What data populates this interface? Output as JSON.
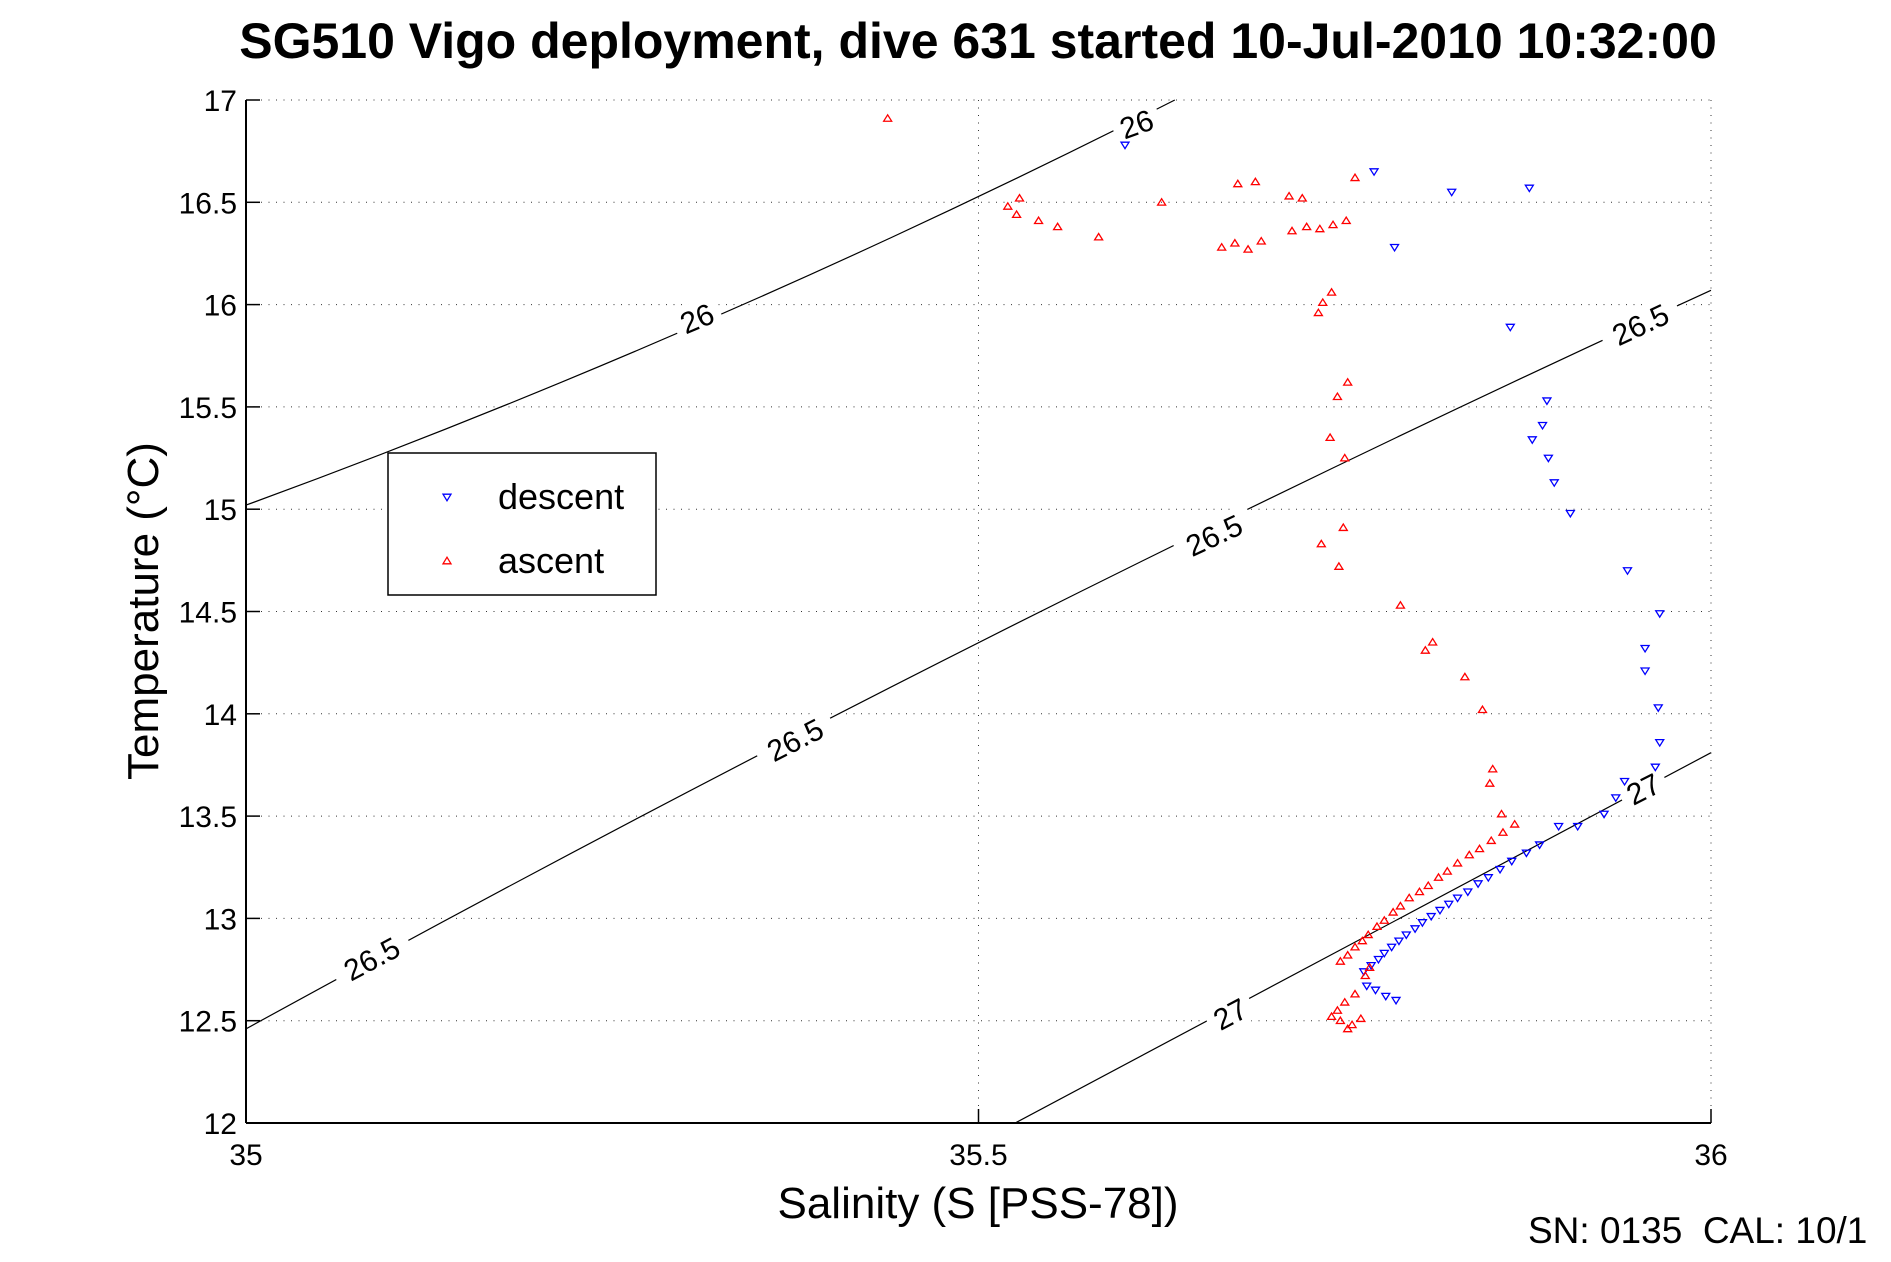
{
  "title": "SG510 Vigo deployment, dive 631 started 10-Jul-2010 10:32:00",
  "footer_note": "SN: 0135  CAL: 10/1",
  "chart_data": {
    "type": "scatter",
    "title": "SG510 Vigo deployment, dive 631 started 10-Jul-2010 10:32:00",
    "xlabel": "Salinity (S [PSS-78])",
    "ylabel": "Temperature (°C)",
    "xlim": [
      35,
      36
    ],
    "ylim": [
      12,
      17
    ],
    "xticks": [
      [
        35,
        "35"
      ],
      [
        35.5,
        "35.5"
      ],
      [
        36,
        "36"
      ]
    ],
    "yticks": [
      [
        12,
        "12"
      ],
      [
        12.5,
        "12.5"
      ],
      [
        13,
        "13"
      ],
      [
        13.5,
        "13.5"
      ],
      [
        14,
        "14"
      ],
      [
        14.5,
        "14.5"
      ],
      [
        15,
        "15"
      ],
      [
        15.5,
        "15.5"
      ],
      [
        16,
        "16"
      ],
      [
        16.5,
        "16.5"
      ],
      [
        17,
        "17"
      ]
    ],
    "grid": "dotted",
    "legend": {
      "position": "upper-left-inside",
      "entries": [
        {
          "label": "descent",
          "marker": "triangle-down",
          "color": "#0000ff"
        },
        {
          "label": "ascent",
          "marker": "triangle-up",
          "color": "#ff0000"
        }
      ]
    },
    "contours": [
      {
        "value": "26",
        "quad": [
          [
            35.0,
            15.02
          ],
          [
            35.317,
            15.85
          ],
          [
            35.634,
            17.0
          ]
        ],
        "labels": [
          [
            35.308,
            15.93,
            -23
          ],
          [
            35.608,
            16.88,
            -20
          ]
        ]
      },
      {
        "value": "26.5",
        "quad": [
          [
            35.0,
            12.46
          ],
          [
            35.5,
            14.43
          ],
          [
            36.0,
            16.07
          ]
        ],
        "labels": [
          [
            35.086,
            12.8,
            -28
          ],
          [
            35.375,
            13.87,
            -27
          ],
          [
            35.661,
            14.87,
            -25
          ],
          [
            35.952,
            15.9,
            -25
          ]
        ]
      },
      {
        "value": "27",
        "quad": [
          [
            35.525,
            12.0
          ],
          [
            35.762,
            12.91
          ],
          [
            36.0,
            13.81
          ]
        ],
        "labels": [
          [
            35.672,
            12.53,
            -28
          ],
          [
            35.954,
            13.63,
            -27
          ]
        ]
      }
    ],
    "series": [
      {
        "name": "descent",
        "marker": "triangle-down",
        "color": "#0000ff",
        "points": [
          [
            35.6,
            16.78
          ],
          [
            35.77,
            16.65
          ],
          [
            35.823,
            16.55
          ],
          [
            35.876,
            16.57
          ],
          [
            35.784,
            16.28
          ],
          [
            35.863,
            15.89
          ],
          [
            35.888,
            15.53
          ],
          [
            35.885,
            15.41
          ],
          [
            35.878,
            15.34
          ],
          [
            35.889,
            15.25
          ],
          [
            35.893,
            15.13
          ],
          [
            35.904,
            14.98
          ],
          [
            35.943,
            14.7
          ],
          [
            35.965,
            14.49
          ],
          [
            35.955,
            14.32
          ],
          [
            35.955,
            14.21
          ],
          [
            35.964,
            14.03
          ],
          [
            35.965,
            13.86
          ],
          [
            35.962,
            13.74
          ],
          [
            35.941,
            13.67
          ],
          [
            35.935,
            13.59
          ],
          [
            35.927,
            13.51
          ],
          [
            35.909,
            13.45
          ],
          [
            35.896,
            13.45
          ],
          [
            35.883,
            13.36
          ],
          [
            35.874,
            13.32
          ],
          [
            35.864,
            13.28
          ],
          [
            35.856,
            13.24
          ],
          [
            35.848,
            13.2
          ],
          [
            35.841,
            13.17
          ],
          [
            35.834,
            13.13
          ],
          [
            35.827,
            13.1
          ],
          [
            35.821,
            13.07
          ],
          [
            35.815,
            13.04
          ],
          [
            35.809,
            13.01
          ],
          [
            35.803,
            12.98
          ],
          [
            35.798,
            12.95
          ],
          [
            35.792,
            12.92
          ],
          [
            35.787,
            12.89
          ],
          [
            35.782,
            12.86
          ],
          [
            35.777,
            12.83
          ],
          [
            35.773,
            12.8
          ],
          [
            35.768,
            12.77
          ],
          [
            35.763,
            12.74
          ],
          [
            35.785,
            12.6
          ],
          [
            35.778,
            12.62
          ],
          [
            35.771,
            12.65
          ],
          [
            35.765,
            12.67
          ]
        ]
      },
      {
        "name": "ascent",
        "marker": "triangle-up",
        "color": "#ff0000",
        "points": [
          [
            35.438,
            16.91
          ],
          [
            35.52,
            16.48
          ],
          [
            35.528,
            16.52
          ],
          [
            35.526,
            16.44
          ],
          [
            35.541,
            16.41
          ],
          [
            35.554,
            16.38
          ],
          [
            35.582,
            16.33
          ],
          [
            35.625,
            16.5
          ],
          [
            35.677,
            16.59
          ],
          [
            35.689,
            16.6
          ],
          [
            35.712,
            16.53
          ],
          [
            35.721,
            16.52
          ],
          [
            35.757,
            16.62
          ],
          [
            35.666,
            16.28
          ],
          [
            35.675,
            16.3
          ],
          [
            35.684,
            16.27
          ],
          [
            35.693,
            16.31
          ],
          [
            35.714,
            16.36
          ],
          [
            35.724,
            16.38
          ],
          [
            35.733,
            16.37
          ],
          [
            35.742,
            16.39
          ],
          [
            35.751,
            16.41
          ],
          [
            35.741,
            16.06
          ],
          [
            35.735,
            16.01
          ],
          [
            35.732,
            15.96
          ],
          [
            35.752,
            15.62
          ],
          [
            35.745,
            15.55
          ],
          [
            35.74,
            15.35
          ],
          [
            35.75,
            15.25
          ],
          [
            35.749,
            14.91
          ],
          [
            35.734,
            14.83
          ],
          [
            35.746,
            14.72
          ],
          [
            35.788,
            14.53
          ],
          [
            35.81,
            14.35
          ],
          [
            35.805,
            14.31
          ],
          [
            35.832,
            14.18
          ],
          [
            35.844,
            14.02
          ],
          [
            35.851,
            13.73
          ],
          [
            35.849,
            13.66
          ],
          [
            35.857,
            13.51
          ],
          [
            35.866,
            13.46
          ],
          [
            35.858,
            13.42
          ],
          [
            35.85,
            13.38
          ],
          [
            35.842,
            13.34
          ],
          [
            35.835,
            13.31
          ],
          [
            35.827,
            13.27
          ],
          [
            35.82,
            13.23
          ],
          [
            35.814,
            13.2
          ],
          [
            35.807,
            13.16
          ],
          [
            35.801,
            13.13
          ],
          [
            35.794,
            13.1
          ],
          [
            35.788,
            13.06
          ],
          [
            35.783,
            13.03
          ],
          [
            35.777,
            12.99
          ],
          [
            35.772,
            12.96
          ],
          [
            35.766,
            12.92
          ],
          [
            35.762,
            12.89
          ],
          [
            35.757,
            12.86
          ],
          [
            35.752,
            12.82
          ],
          [
            35.747,
            12.79
          ],
          [
            35.767,
            12.76
          ],
          [
            35.764,
            12.72
          ],
          [
            35.757,
            12.63
          ],
          [
            35.75,
            12.59
          ],
          [
            35.745,
            12.55
          ],
          [
            35.741,
            12.52
          ],
          [
            35.747,
            12.5
          ],
          [
            35.755,
            12.48
          ],
          [
            35.761,
            12.51
          ],
          [
            35.752,
            12.46
          ]
        ]
      }
    ]
  }
}
